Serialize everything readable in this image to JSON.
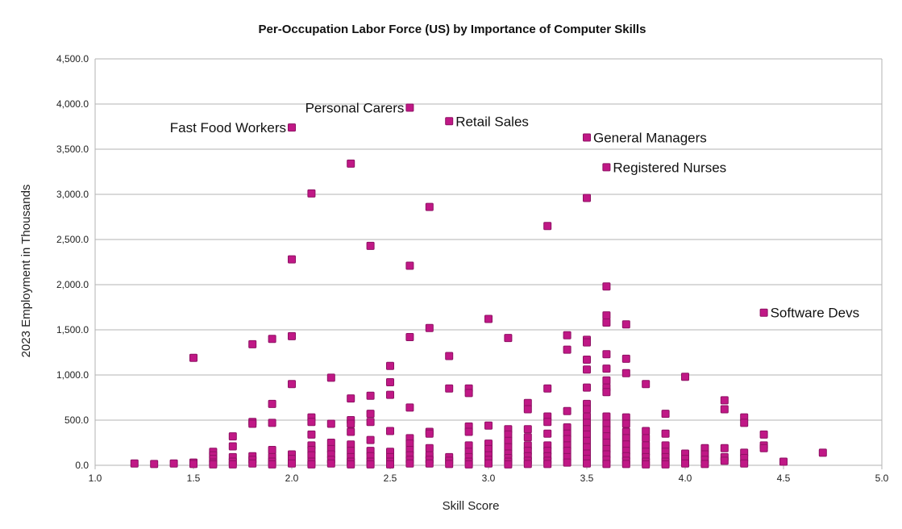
{
  "chart_data": {
    "type": "scatter",
    "title": "Per-Occupation Labor Force (US) by Importance of Computer Skills",
    "xlabel": "Skill Score",
    "ylabel": "2023 Employment in Thousands",
    "xlim": [
      1.0,
      5.0
    ],
    "ylim": [
      0,
      4500
    ],
    "xticks": [
      "1.0",
      "1.5",
      "2.0",
      "2.5",
      "3.0",
      "3.5",
      "4.0",
      "4.5",
      "5.0"
    ],
    "yticks": [
      "0.0",
      "500.0",
      "1,000.0",
      "1,500.0",
      "2,000.0",
      "2,500.0",
      "3,000.0",
      "3,500.0",
      "4,000.0",
      "4,500.0"
    ],
    "grid": "horizontal",
    "legend": "none",
    "marker_color": "#c01886",
    "annotations": [
      {
        "text": "Personal Carers",
        "x": 2.6,
        "y": 3960
      },
      {
        "text": "Retail Sales",
        "x": 2.8,
        "y": 3810
      },
      {
        "text": "Fast Food Workers",
        "x": 2.0,
        "y": 3740
      },
      {
        "text": "General Managers",
        "x": 3.5,
        "y": 3630
      },
      {
        "text": "Registered Nurses",
        "x": 3.6,
        "y": 3300
      },
      {
        "text": "Software Devs",
        "x": 4.4,
        "y": 1690
      }
    ],
    "points": [
      [
        1.2,
        20
      ],
      [
        1.3,
        15
      ],
      [
        1.4,
        20
      ],
      [
        1.5,
        30
      ],
      [
        1.5,
        15
      ],
      [
        1.5,
        1190
      ],
      [
        1.6,
        150
      ],
      [
        1.6,
        110
      ],
      [
        1.6,
        70
      ],
      [
        1.6,
        30
      ],
      [
        1.6,
        10
      ],
      [
        1.7,
        320
      ],
      [
        1.7,
        210
      ],
      [
        1.7,
        90
      ],
      [
        1.7,
        40
      ],
      [
        1.7,
        10
      ],
      [
        1.8,
        1340
      ],
      [
        1.8,
        480
      ],
      [
        1.8,
        460
      ],
      [
        1.8,
        100
      ],
      [
        1.8,
        60
      ],
      [
        1.8,
        20
      ],
      [
        1.9,
        1400
      ],
      [
        1.9,
        680
      ],
      [
        1.9,
        470
      ],
      [
        1.9,
        170
      ],
      [
        1.9,
        90
      ],
      [
        1.9,
        40
      ],
      [
        1.9,
        10
      ],
      [
        2.0,
        3740
      ],
      [
        2.0,
        2280
      ],
      [
        2.0,
        1430
      ],
      [
        2.0,
        900
      ],
      [
        2.0,
        120
      ],
      [
        2.0,
        70
      ],
      [
        2.0,
        20
      ],
      [
        2.1,
        3010
      ],
      [
        2.1,
        530
      ],
      [
        2.1,
        480
      ],
      [
        2.1,
        340
      ],
      [
        2.1,
        220
      ],
      [
        2.1,
        170
      ],
      [
        2.1,
        110
      ],
      [
        2.1,
        40
      ],
      [
        2.1,
        10
      ],
      [
        2.2,
        970
      ],
      [
        2.2,
        460
      ],
      [
        2.2,
        250
      ],
      [
        2.2,
        180
      ],
      [
        2.2,
        120
      ],
      [
        2.2,
        60
      ],
      [
        2.2,
        20
      ],
      [
        2.3,
        3340
      ],
      [
        2.3,
        740
      ],
      [
        2.3,
        500
      ],
      [
        2.3,
        460
      ],
      [
        2.3,
        370
      ],
      [
        2.3,
        230
      ],
      [
        2.3,
        160
      ],
      [
        2.3,
        90
      ],
      [
        2.3,
        40
      ],
      [
        2.3,
        10
      ],
      [
        2.4,
        2430
      ],
      [
        2.4,
        770
      ],
      [
        2.4,
        570
      ],
      [
        2.4,
        480
      ],
      [
        2.4,
        280
      ],
      [
        2.4,
        160
      ],
      [
        2.4,
        100
      ],
      [
        2.4,
        40
      ],
      [
        2.4,
        10
      ],
      [
        2.5,
        1100
      ],
      [
        2.5,
        920
      ],
      [
        2.5,
        780
      ],
      [
        2.5,
        380
      ],
      [
        2.5,
        150
      ],
      [
        2.5,
        90
      ],
      [
        2.5,
        40
      ],
      [
        2.5,
        10
      ],
      [
        2.6,
        3960
      ],
      [
        2.6,
        2210
      ],
      [
        2.6,
        1420
      ],
      [
        2.6,
        640
      ],
      [
        2.6,
        300
      ],
      [
        2.6,
        240
      ],
      [
        2.6,
        170
      ],
      [
        2.6,
        110
      ],
      [
        2.6,
        60
      ],
      [
        2.6,
        20
      ],
      [
        2.7,
        2860
      ],
      [
        2.7,
        1520
      ],
      [
        2.7,
        370
      ],
      [
        2.7,
        350
      ],
      [
        2.7,
        190
      ],
      [
        2.7,
        110
      ],
      [
        2.7,
        60
      ],
      [
        2.7,
        20
      ],
      [
        2.8,
        3810
      ],
      [
        2.8,
        1210
      ],
      [
        2.8,
        850
      ],
      [
        2.8,
        90
      ],
      [
        2.8,
        50
      ],
      [
        2.8,
        15
      ],
      [
        2.9,
        850
      ],
      [
        2.9,
        800
      ],
      [
        2.9,
        430
      ],
      [
        2.9,
        370
      ],
      [
        2.9,
        220
      ],
      [
        2.9,
        150
      ],
      [
        2.9,
        90
      ],
      [
        2.9,
        40
      ],
      [
        2.9,
        10
      ],
      [
        3.0,
        1620
      ],
      [
        3.0,
        440
      ],
      [
        3.0,
        240
      ],
      [
        3.0,
        180
      ],
      [
        3.0,
        110
      ],
      [
        3.0,
        60
      ],
      [
        3.0,
        20
      ],
      [
        3.1,
        1410
      ],
      [
        3.1,
        400
      ],
      [
        3.1,
        340
      ],
      [
        3.1,
        270
      ],
      [
        3.1,
        200
      ],
      [
        3.1,
        130
      ],
      [
        3.1,
        80
      ],
      [
        3.1,
        40
      ],
      [
        3.1,
        10
      ],
      [
        3.2,
        690
      ],
      [
        3.2,
        620
      ],
      [
        3.2,
        400
      ],
      [
        3.2,
        310
      ],
      [
        3.2,
        220
      ],
      [
        3.2,
        160
      ],
      [
        3.2,
        100
      ],
      [
        3.2,
        50
      ],
      [
        3.2,
        15
      ],
      [
        3.3,
        2650
      ],
      [
        3.3,
        850
      ],
      [
        3.3,
        540
      ],
      [
        3.3,
        480
      ],
      [
        3.3,
        350
      ],
      [
        3.3,
        220
      ],
      [
        3.3,
        160
      ],
      [
        3.3,
        100
      ],
      [
        3.3,
        50
      ],
      [
        3.3,
        15
      ],
      [
        3.4,
        1440
      ],
      [
        3.4,
        1280
      ],
      [
        3.4,
        600
      ],
      [
        3.4,
        420
      ],
      [
        3.4,
        350
      ],
      [
        3.4,
        290
      ],
      [
        3.4,
        220
      ],
      [
        3.4,
        160
      ],
      [
        3.4,
        90
      ],
      [
        3.4,
        30
      ],
      [
        3.5,
        3630
      ],
      [
        3.5,
        2960
      ],
      [
        3.5,
        1390
      ],
      [
        3.5,
        1360
      ],
      [
        3.5,
        1170
      ],
      [
        3.5,
        1060
      ],
      [
        3.5,
        860
      ],
      [
        3.5,
        680
      ],
      [
        3.5,
        620
      ],
      [
        3.5,
        540
      ],
      [
        3.5,
        470
      ],
      [
        3.5,
        400
      ],
      [
        3.5,
        340
      ],
      [
        3.5,
        270
      ],
      [
        3.5,
        200
      ],
      [
        3.5,
        130
      ],
      [
        3.5,
        70
      ],
      [
        3.5,
        20
      ],
      [
        3.6,
        3300
      ],
      [
        3.6,
        1980
      ],
      [
        3.6,
        1660
      ],
      [
        3.6,
        1580
      ],
      [
        3.6,
        1230
      ],
      [
        3.6,
        1070
      ],
      [
        3.6,
        940
      ],
      [
        3.6,
        860
      ],
      [
        3.6,
        810
      ],
      [
        3.6,
        540
      ],
      [
        3.6,
        460
      ],
      [
        3.6,
        390
      ],
      [
        3.6,
        320
      ],
      [
        3.6,
        250
      ],
      [
        3.6,
        180
      ],
      [
        3.6,
        120
      ],
      [
        3.6,
        60
      ],
      [
        3.6,
        15
      ],
      [
        3.7,
        1560
      ],
      [
        3.7,
        1180
      ],
      [
        3.7,
        1020
      ],
      [
        3.7,
        530
      ],
      [
        3.7,
        460
      ],
      [
        3.7,
        370
      ],
      [
        3.7,
        300
      ],
      [
        3.7,
        230
      ],
      [
        3.7,
        160
      ],
      [
        3.7,
        100
      ],
      [
        3.7,
        50
      ],
      [
        3.7,
        15
      ],
      [
        3.8,
        900
      ],
      [
        3.8,
        380
      ],
      [
        3.8,
        300
      ],
      [
        3.8,
        220
      ],
      [
        3.8,
        150
      ],
      [
        3.8,
        90
      ],
      [
        3.8,
        40
      ],
      [
        3.8,
        10
      ],
      [
        3.9,
        570
      ],
      [
        3.9,
        350
      ],
      [
        3.9,
        220
      ],
      [
        3.9,
        150
      ],
      [
        3.9,
        90
      ],
      [
        3.9,
        40
      ],
      [
        3.9,
        10
      ],
      [
        4.0,
        980
      ],
      [
        4.0,
        130
      ],
      [
        4.0,
        70
      ],
      [
        4.0,
        20
      ],
      [
        4.1,
        190
      ],
      [
        4.1,
        120
      ],
      [
        4.1,
        60
      ],
      [
        4.1,
        15
      ],
      [
        4.2,
        720
      ],
      [
        4.2,
        620
      ],
      [
        4.2,
        190
      ],
      [
        4.2,
        90
      ],
      [
        4.2,
        50
      ],
      [
        4.3,
        530
      ],
      [
        4.3,
        470
      ],
      [
        4.3,
        140
      ],
      [
        4.3,
        80
      ],
      [
        4.3,
        20
      ],
      [
        4.4,
        1690
      ],
      [
        4.4,
        340
      ],
      [
        4.4,
        220
      ],
      [
        4.4,
        190
      ],
      [
        4.5,
        40
      ],
      [
        4.7,
        140
      ]
    ]
  }
}
